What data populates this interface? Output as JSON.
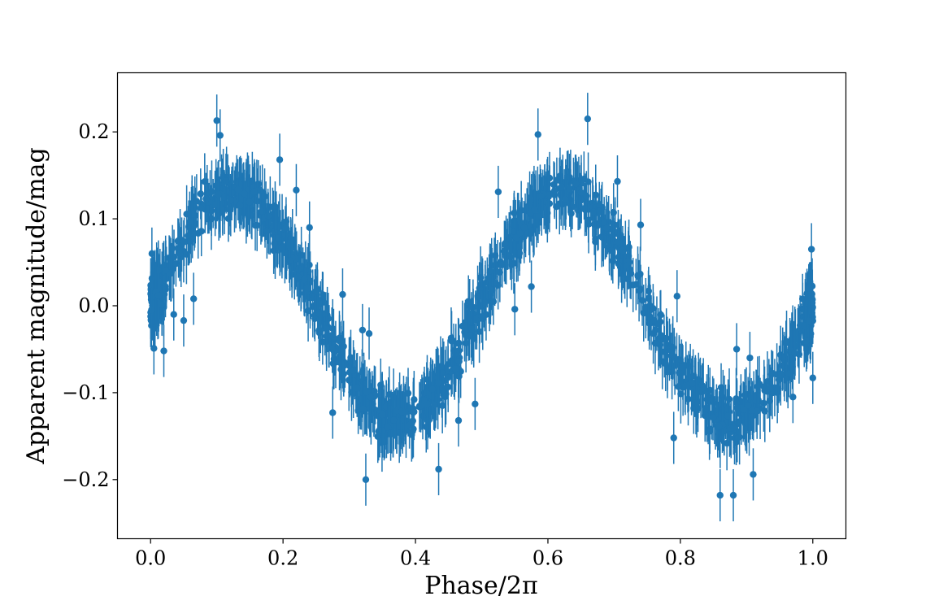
{
  "chart_data": {
    "type": "scatter",
    "style": "error-bars",
    "xlabel": "Phase/2π",
    "ylabel": "Apparent magnitude/mag",
    "xlim": [
      -0.05,
      1.05
    ],
    "ylim": [
      -0.268,
      0.268
    ],
    "x_ticks": [
      0.0,
      0.2,
      0.4,
      0.6,
      0.8,
      1.0
    ],
    "x_tick_labels": [
      "0.0",
      "0.2",
      "0.4",
      "0.6",
      "0.8",
      "1.0"
    ],
    "y_ticks": [
      0.2,
      0.1,
      0.0,
      -0.1,
      -0.2
    ],
    "y_tick_labels": [
      "0.2",
      "0.1",
      "0.0",
      "−0.1",
      "−0.2"
    ],
    "grid": false,
    "legend": "none",
    "color": "#1f77b4",
    "model": {
      "description": "dense cloud of points following a double sinusoid over one phase",
      "peaks": [
        {
          "x": 0.125,
          "y": 0.13
        },
        {
          "x": 0.625,
          "y": 0.13
        }
      ],
      "troughs": [
        {
          "x": 0.375,
          "y": -0.13
        },
        {
          "x": 0.875,
          "y": -0.13
        }
      ],
      "scatter_halfwidth": 0.045,
      "errorbar_halfwidth": 0.03
    },
    "points": [
      {
        "x": 0.1,
        "y": 0.213
      },
      {
        "x": 0.105,
        "y": 0.196
      },
      {
        "x": 0.195,
        "y": 0.168
      },
      {
        "x": 0.22,
        "y": 0.133
      },
      {
        "x": 0.24,
        "y": 0.09
      },
      {
        "x": 0.05,
        "y": -0.017
      },
      {
        "x": 0.065,
        "y": 0.008
      },
      {
        "x": 0.035,
        "y": -0.01
      },
      {
        "x": 0.02,
        "y": -0.052
      },
      {
        "x": 0.002,
        "y": 0.06
      },
      {
        "x": 0.005,
        "y": -0.049
      },
      {
        "x": 0.29,
        "y": 0.013
      },
      {
        "x": 0.275,
        "y": -0.123
      },
      {
        "x": 0.325,
        "y": -0.2
      },
      {
        "x": 0.33,
        "y": -0.032
      },
      {
        "x": 0.32,
        "y": -0.028
      },
      {
        "x": 0.435,
        "y": -0.188
      },
      {
        "x": 0.465,
        "y": -0.132
      },
      {
        "x": 0.48,
        "y": 0.005
      },
      {
        "x": 0.49,
        "y": -0.113
      },
      {
        "x": 0.525,
        "y": 0.131
      },
      {
        "x": 0.55,
        "y": -0.004
      },
      {
        "x": 0.575,
        "y": 0.022
      },
      {
        "x": 0.585,
        "y": 0.197
      },
      {
        "x": 0.66,
        "y": 0.215
      },
      {
        "x": 0.705,
        "y": 0.143
      },
      {
        "x": 0.74,
        "y": 0.093
      },
      {
        "x": 0.795,
        "y": 0.011
      },
      {
        "x": 0.79,
        "y": -0.152
      },
      {
        "x": 0.86,
        "y": -0.218
      },
      {
        "x": 0.88,
        "y": -0.218
      },
      {
        "x": 0.885,
        "y": -0.05
      },
      {
        "x": 0.91,
        "y": -0.194
      },
      {
        "x": 0.905,
        "y": -0.06
      },
      {
        "x": 0.97,
        "y": -0.105
      },
      {
        "x": 0.998,
        "y": 0.065
      },
      {
        "x": 1.0,
        "y": -0.083
      },
      {
        "x": 0.995,
        "y": 0.02
      }
    ]
  }
}
